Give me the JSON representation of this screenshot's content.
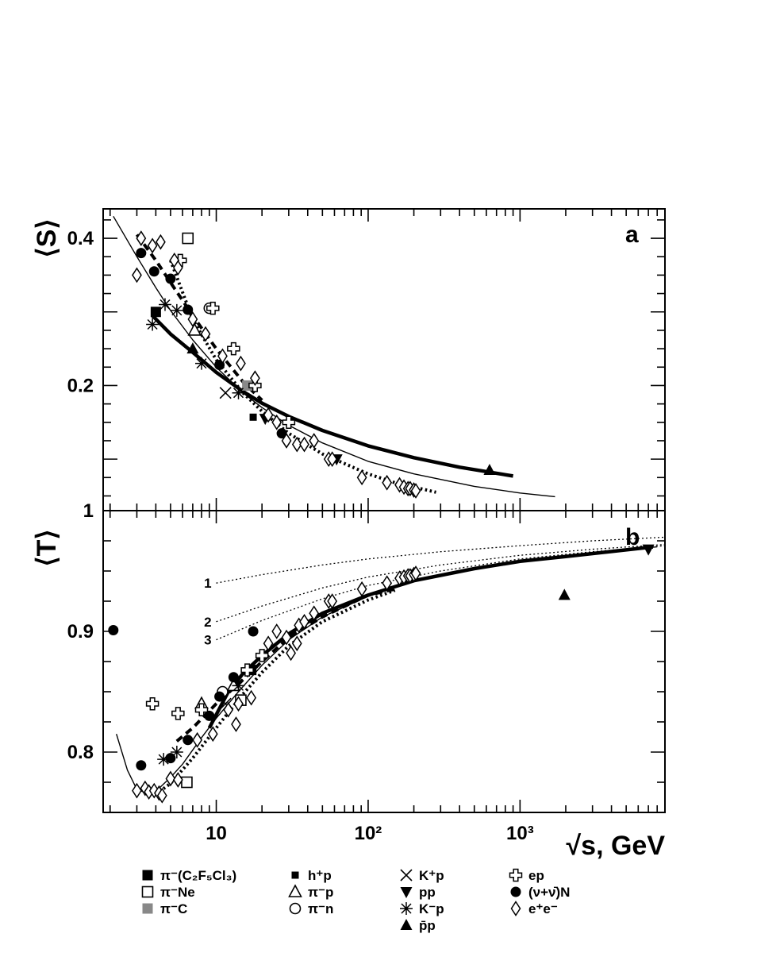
{
  "chart_data": [
    {
      "type": "scatter",
      "panel": "a",
      "panel_label": "a",
      "ylabel": "⟨S⟩",
      "xlabel": "√s, GeV",
      "xscale": "log",
      "xlim": [
        1.8,
        9000
      ],
      "ylim": [
        0.03,
        0.44
      ],
      "yticks": [
        0.2,
        0.4
      ],
      "ytick_labels": [
        "0.2",
        "0.4"
      ],
      "series": [
        {
          "name": "π⁻(C₂F₅Cl₃)",
          "marker": "filled-square",
          "points": [
            [
              4.0,
              0.3
            ]
          ]
        },
        {
          "name": "π⁻Ne",
          "marker": "open-square",
          "points": [
            [
              6.5,
              0.4
            ]
          ]
        },
        {
          "name": "π⁻C",
          "marker": "gray-square",
          "points": [
            [
              16,
              0.2
            ]
          ]
        },
        {
          "name": "h⁺p",
          "marker": "small-filled-square",
          "points": [
            [
              17.5,
              0.157
            ]
          ]
        },
        {
          "name": "π⁻p",
          "marker": "open-triangle",
          "points": [
            [
              7.2,
              0.275
            ]
          ]
        },
        {
          "name": "π⁻n",
          "marker": "open-circle",
          "points": [
            [
              9.0,
              0.305
            ]
          ]
        },
        {
          "name": "K⁺p",
          "marker": "cross",
          "points": [
            [
              11.5,
              0.19
            ]
          ]
        },
        {
          "name": "pp",
          "marker": "filled-triangle-down",
          "points": [
            [
              21,
              0.155
            ],
            [
              62,
              0.1
            ]
          ]
        },
        {
          "name": "K⁻p",
          "marker": "asterisk",
          "points": [
            [
              3.8,
              0.283
            ],
            [
              4.6,
              0.31
            ],
            [
              5.5,
              0.302
            ],
            [
              8.0,
              0.23
            ],
            [
              14,
              0.19
            ]
          ]
        },
        {
          "name": "p̄p",
          "marker": "filled-triangle-up",
          "points": [
            [
              7.0,
              0.25
            ],
            [
              630,
              0.085
            ]
          ]
        },
        {
          "name": "ep",
          "marker": "open-cross",
          "points": [
            [
              5.8,
              0.37
            ],
            [
              9.5,
              0.305
            ],
            [
              13,
              0.25
            ],
            [
              18,
              0.2
            ],
            [
              30,
              0.15
            ]
          ]
        },
        {
          "name": "(ν+ν̄)N",
          "marker": "filled-circle",
          "points": [
            [
              3.2,
              0.38
            ],
            [
              3.9,
              0.355
            ],
            [
              5.0,
              0.345
            ],
            [
              6.5,
              0.303
            ],
            [
              10.5,
              0.228
            ],
            [
              27,
              0.135
            ]
          ]
        },
        {
          "name": "e⁺e⁻",
          "marker": "open-diamond",
          "points": [
            [
              3.0,
              0.35
            ],
            [
              3.2,
              0.4
            ],
            [
              3.8,
              0.39
            ],
            [
              4.3,
              0.395
            ],
            [
              5.3,
              0.37
            ],
            [
              5.6,
              0.36
            ],
            [
              7.0,
              0.29
            ],
            [
              8.5,
              0.27
            ],
            [
              11,
              0.24
            ],
            [
              14.5,
              0.23
            ],
            [
              18,
              0.21
            ],
            [
              22,
              0.16
            ],
            [
              25,
              0.15
            ],
            [
              29,
              0.125
            ],
            [
              34,
              0.12
            ],
            [
              38,
              0.12
            ],
            [
              44,
              0.125
            ],
            [
              55,
              0.1
            ],
            [
              58,
              0.1
            ],
            [
              91,
              0.075
            ],
            [
              133,
              0.068
            ],
            [
              161,
              0.065
            ],
            [
              172,
              0.062
            ],
            [
              183,
              0.06
            ],
            [
              189,
              0.06
            ],
            [
              200,
              0.058
            ],
            [
              206,
              0.057
            ]
          ]
        }
      ],
      "curves": [
        {
          "style": "thick-solid",
          "x": [
            3.8,
            5,
            7,
            10,
            15,
            20,
            30,
            50,
            100,
            200,
            400,
            900
          ],
          "y": [
            0.295,
            0.27,
            0.245,
            0.218,
            0.192,
            0.176,
            0.158,
            0.139,
            0.118,
            0.102,
            0.089,
            0.077
          ]
        },
        {
          "style": "thin-solid",
          "x": [
            2.1,
            3,
            4,
            5,
            7,
            10,
            15,
            20,
            30,
            50,
            100,
            200,
            500,
            1000,
            1700
          ],
          "y": [
            0.43,
            0.375,
            0.333,
            0.302,
            0.262,
            0.225,
            0.19,
            0.17,
            0.146,
            0.122,
            0.097,
            0.08,
            0.063,
            0.054,
            0.049
          ]
        },
        {
          "style": "thick-dashed",
          "x": [
            3.0,
            4,
            5,
            7,
            10,
            15,
            20
          ],
          "y": [
            0.405,
            0.37,
            0.34,
            0.295,
            0.25,
            0.205,
            0.18
          ]
        },
        {
          "style": "thick-dotted",
          "x": [
            5.0,
            7,
            10,
            15,
            20,
            30,
            50,
            100,
            150,
            280
          ],
          "y": [
            0.37,
            0.29,
            0.235,
            0.19,
            0.165,
            0.135,
            0.107,
            0.08,
            0.068,
            0.055
          ]
        }
      ]
    },
    {
      "type": "scatter",
      "panel": "b",
      "panel_label": "b",
      "ylabel": "⟨T⟩",
      "xlabel": "√s, GeV",
      "xscale": "log",
      "xlim": [
        1.8,
        9000
      ],
      "ylim": [
        0.75,
        1.0
      ],
      "xticks": [
        10,
        100,
        1000
      ],
      "xtick_labels": [
        "10",
        "10²",
        "10³"
      ],
      "yticks": [
        0.8,
        0.9,
        1.0
      ],
      "ytick_labels": [
        "0.8",
        "0.9",
        "1"
      ],
      "series": [
        {
          "name": "π⁻(C₂F₅Cl₃)",
          "marker": "filled-square",
          "points": [
            [
              17,
              0.868
            ]
          ]
        },
        {
          "name": "π⁻Ne",
          "marker": "open-square",
          "points": [
            [
              6.4,
              0.775
            ],
            [
              14.5,
              0.843
            ]
          ]
        },
        {
          "name": "π⁻p",
          "marker": "open-triangle",
          "points": [
            [
              8,
              0.84
            ],
            [
              13,
              0.855
            ]
          ]
        },
        {
          "name": "π⁻n",
          "marker": "open-circle",
          "points": [
            [
              11,
              0.85
            ]
          ]
        },
        {
          "name": "K⁺p",
          "marker": "cross",
          "points": [
            [
              11.5,
              0.84
            ]
          ]
        },
        {
          "name": "pp",
          "marker": "filled-triangle-down",
          "points": [
            [
              7000,
              0.968
            ]
          ]
        },
        {
          "name": "K⁻p",
          "marker": "asterisk",
          "points": [
            [
              4.5,
              0.794
            ],
            [
              5.5,
              0.8
            ],
            [
              14,
              0.855
            ]
          ]
        },
        {
          "name": "p̄p",
          "marker": "filled-triangle-up",
          "points": [
            [
              1960,
              0.93
            ]
          ]
        },
        {
          "name": "ep",
          "marker": "open-cross",
          "points": [
            [
              3.8,
              0.84
            ],
            [
              5.6,
              0.832
            ],
            [
              8,
              0.835
            ],
            [
              16,
              0.868
            ],
            [
              20,
              0.88
            ]
          ]
        },
        {
          "name": "(ν+ν̄)N",
          "marker": "filled-circle",
          "points": [
            [
              2.1,
              0.901
            ],
            [
              3.2,
              0.789
            ],
            [
              5.0,
              0.795
            ],
            [
              6.5,
              0.81
            ],
            [
              9,
              0.83
            ],
            [
              10.5,
              0.846
            ],
            [
              13,
              0.862
            ],
            [
              17.5,
              0.9
            ]
          ]
        },
        {
          "name": "e⁺e⁻",
          "marker": "open-diamond",
          "points": [
            [
              3.0,
              0.768
            ],
            [
              3.4,
              0.77
            ],
            [
              3.6,
              0.767
            ],
            [
              3.9,
              0.768
            ],
            [
              4.2,
              0.766
            ],
            [
              4.4,
              0.764
            ],
            [
              5.0,
              0.778
            ],
            [
              5.6,
              0.777
            ],
            [
              7.5,
              0.81
            ],
            [
              9.5,
              0.815
            ],
            [
              12,
              0.835
            ],
            [
              13.5,
              0.823
            ],
            [
              14,
              0.84
            ],
            [
              17,
              0.845
            ],
            [
              22,
              0.89
            ],
            [
              25,
              0.9
            ],
            [
              29,
              0.895
            ],
            [
              31,
              0.882
            ],
            [
              34,
              0.89
            ],
            [
              35,
              0.905
            ],
            [
              38,
              0.908
            ],
            [
              44,
              0.915
            ],
            [
              55,
              0.925
            ],
            [
              58,
              0.925
            ],
            [
              91,
              0.935
            ],
            [
              133,
              0.94
            ],
            [
              161,
              0.944
            ],
            [
              172,
              0.945
            ],
            [
              183,
              0.946
            ],
            [
              189,
              0.946
            ],
            [
              200,
              0.947
            ],
            [
              206,
              0.948
            ]
          ]
        }
      ],
      "curves": [
        {
          "style": "thick-solid",
          "x": [
            9,
            12,
            15,
            20,
            30,
            50,
            100,
            200,
            500,
            1000,
            2000,
            7500
          ],
          "y": [
            0.82,
            0.85,
            0.865,
            0.88,
            0.898,
            0.915,
            0.93,
            0.942,
            0.952,
            0.958,
            0.962,
            0.97
          ]
        },
        {
          "style": "thin-solid",
          "x": [
            2.2,
            2.6,
            3.0,
            3.5,
            4.2,
            5,
            6,
            8,
            10,
            14,
            20,
            30,
            50,
            100,
            200,
            500,
            1000,
            3000,
            8000
          ],
          "y": [
            0.815,
            0.785,
            0.769,
            0.766,
            0.77,
            0.779,
            0.79,
            0.812,
            0.828,
            0.85,
            0.872,
            0.893,
            0.912,
            0.929,
            0.942,
            0.952,
            0.958,
            0.965,
            0.97
          ]
        },
        {
          "style": "thick-dashed",
          "x": [
            5.5,
            7,
            10,
            15,
            20,
            30,
            50,
            100,
            150
          ],
          "y": [
            0.809,
            0.82,
            0.84,
            0.86,
            0.875,
            0.895,
            0.912,
            0.93,
            0.935
          ]
        },
        {
          "style": "thick-dotted",
          "x": [
            4.0,
            5,
            7,
            10,
            15,
            20,
            30,
            50,
            100,
            150
          ],
          "y": [
            0.765,
            0.774,
            0.795,
            0.82,
            0.848,
            0.866,
            0.888,
            0.908,
            0.926,
            0.934
          ]
        },
        {
          "style": "thin-dotted",
          "label": "1",
          "x": [
            10,
            20,
            50,
            100,
            300,
            1000,
            3000,
            9000
          ],
          "y": [
            0.94,
            0.947,
            0.955,
            0.96,
            0.966,
            0.971,
            0.975,
            0.978
          ]
        },
        {
          "style": "thin-dotted",
          "label": "2",
          "x": [
            10,
            20,
            50,
            100,
            300,
            1000,
            3000,
            9000
          ],
          "y": [
            0.908,
            0.921,
            0.936,
            0.945,
            0.955,
            0.963,
            0.968,
            0.972
          ]
        },
        {
          "style": "thin-dotted",
          "label": "3",
          "x": [
            10,
            20,
            50,
            100,
            300,
            1000,
            3000,
            9000
          ],
          "y": [
            0.893,
            0.909,
            0.927,
            0.938,
            0.95,
            0.96,
            0.966,
            0.971
          ]
        }
      ]
    }
  ],
  "legend": {
    "items": [
      {
        "label": "π⁻(C₂F₅Cl₃)",
        "marker": "filled-square"
      },
      {
        "label": "π⁻Ne",
        "marker": "open-square"
      },
      {
        "label": "π⁻C",
        "marker": "gray-square"
      },
      {
        "label": "h⁺p",
        "marker": "small-filled-square"
      },
      {
        "label": "π⁻p",
        "marker": "open-triangle"
      },
      {
        "label": "π⁻n",
        "marker": "open-circle"
      },
      {
        "label": "K⁺p",
        "marker": "cross"
      },
      {
        "label": "pp",
        "marker": "filled-triangle-down"
      },
      {
        "label": "K⁻p",
        "marker": "asterisk"
      },
      {
        "label": "p̄p",
        "marker": "filled-triangle-up"
      },
      {
        "label": "ep",
        "marker": "open-cross"
      },
      {
        "label": "(ν+ν̄)N",
        "marker": "filled-circle"
      },
      {
        "label": "e⁺e⁻",
        "marker": "open-diamond"
      }
    ]
  },
  "colors": {
    "ink": "#000000",
    "gray_fill": "#888888",
    "background": "#ffffff"
  }
}
